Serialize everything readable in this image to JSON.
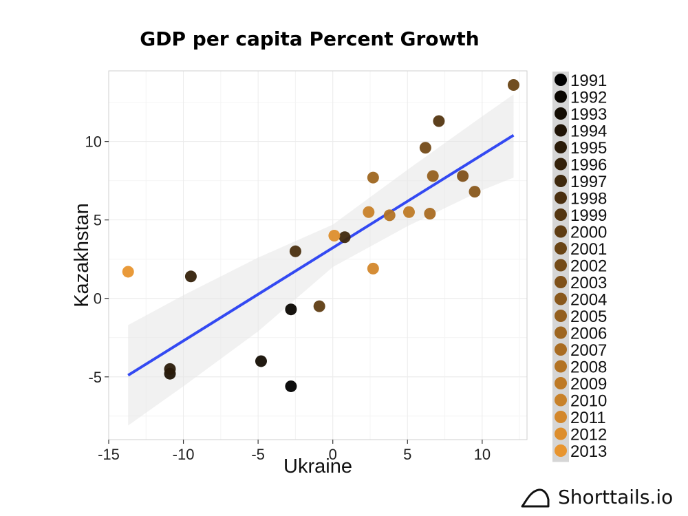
{
  "chart_data": {
    "type": "scatter",
    "title": "GDP per capita Percent Growth",
    "xlabel": "Ukraine",
    "ylabel": "Kazakhstan",
    "xlim": [
      -15,
      13
    ],
    "ylim": [
      -9,
      14.5
    ],
    "xticks": [
      -15,
      -10,
      -5,
      0,
      5,
      10
    ],
    "yticks": [
      -5,
      0,
      5,
      10
    ],
    "grid": true,
    "legend_placement": "right",
    "legend_title": "",
    "legend_entries": [
      "1991",
      "1992",
      "1993",
      "1994",
      "1995",
      "1996",
      "1997",
      "1998",
      "1999",
      "2000",
      "2001",
      "2002",
      "2003",
      "2004",
      "2005",
      "2006",
      "2007",
      "2008",
      "2009",
      "2010",
      "2011",
      "2012",
      "2013"
    ],
    "color_scale": {
      "low": "#000000",
      "high": "#e8952f"
    },
    "points": [
      {
        "year": 1991,
        "x": -2.8,
        "y": -5.6
      },
      {
        "year": 1992,
        "x": -2.8,
        "y": -0.7
      },
      {
        "year": 1993,
        "x": -4.8,
        "y": -4.0
      },
      {
        "year": 1994,
        "x": -10.9,
        "y": -4.8
      },
      {
        "year": 1995,
        "x": -10.9,
        "y": -4.5
      },
      {
        "year": 1996,
        "x": -9.5,
        "y": 1.4
      },
      {
        "year": 1997,
        "x": 0.8,
        "y": 3.9
      },
      {
        "year": 1998,
        "x": -2.5,
        "y": 3.0
      },
      {
        "year": 1999,
        "x": 7.1,
        "y": 11.3
      },
      {
        "year": 2000,
        "x": -0.9,
        "y": -0.5
      },
      {
        "year": 2001,
        "x": 12.1,
        "y": 13.6
      },
      {
        "year": 2002,
        "x": 6.2,
        "y": 9.6
      },
      {
        "year": 2003,
        "x": 8.7,
        "y": 7.8
      },
      {
        "year": 2004,
        "x": 9.5,
        "y": 6.8
      },
      {
        "year": 2005,
        "x": 6.7,
        "y": 7.8
      },
      {
        "year": 2006,
        "x": 2.7,
        "y": 7.7
      },
      {
        "year": 2007,
        "x": 6.5,
        "y": 5.4
      },
      {
        "year": 2008,
        "x": 3.8,
        "y": 5.3
      },
      {
        "year": 2009,
        "x": 5.1,
        "y": 5.5
      },
      {
        "year": 2010,
        "x": 2.4,
        "y": 5.5
      },
      {
        "year": 2011,
        "x": 2.7,
        "y": 1.9
      },
      {
        "year": 2012,
        "x": 0.1,
        "y": 4.0
      },
      {
        "year": 2013,
        "x": -13.7,
        "y": 1.7
      }
    ],
    "trend_line": {
      "color": "#3349f2",
      "x": [
        -13.7,
        12.1
      ],
      "y": [
        -4.9,
        10.4
      ]
    },
    "confidence_band": {
      "x": [
        -13.7,
        -10,
        -5,
        0,
        5,
        10,
        12.1
      ],
      "lower": [
        -8.1,
        -5.6,
        -2.1,
        2.0,
        4.6,
        6.9,
        7.7
      ],
      "upper": [
        -1.7,
        0.2,
        2.6,
        4.7,
        8.2,
        11.6,
        13.0
      ]
    }
  },
  "brand": {
    "text": "Shorttails.io"
  }
}
